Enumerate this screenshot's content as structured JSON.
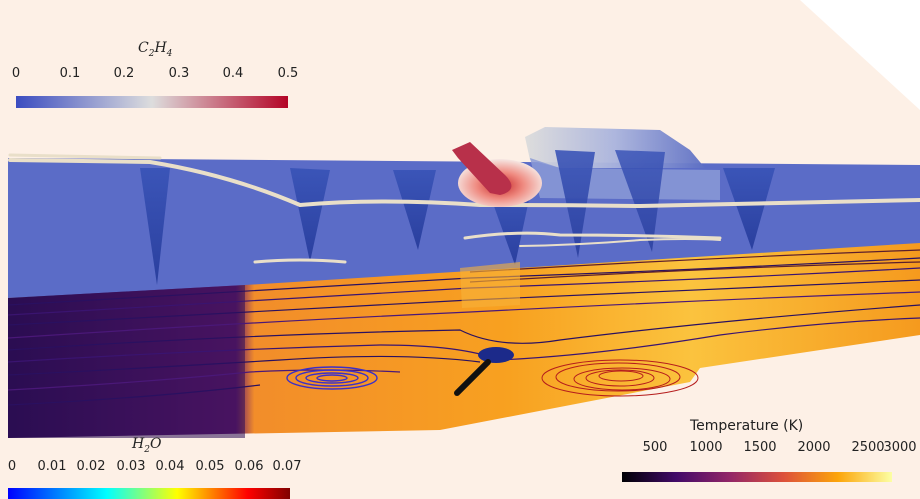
{
  "colorbars": {
    "c2h4": {
      "title_main": "C",
      "title_sub1": "2",
      "title_mid": "H",
      "title_sub2": "4",
      "ticks": [
        "0",
        "0.1",
        "0.2",
        "0.3",
        "0.4",
        "0.5"
      ],
      "colors": [
        "#3b4cc0",
        "#dddddd",
        "#b40426"
      ]
    },
    "h2o": {
      "title_main": "H",
      "title_sub1": "2",
      "title_mid": "O",
      "ticks": [
        "0",
        "0.01",
        "0.02",
        "0.03",
        "0.04",
        "0.05",
        "0.06",
        "0.07"
      ],
      "colors": [
        "#0000ff",
        "#00ffff",
        "#ffff00",
        "#ff0000",
        "#800000"
      ]
    },
    "temperature": {
      "title": "Temperature (K)",
      "ticks": [
        "500",
        "1000",
        "1500",
        "2000",
        "2500",
        "3000"
      ],
      "colors": [
        "#000004",
        "#420a68",
        "#932667",
        "#dd513a",
        "#fca50a",
        "#fcffa4"
      ]
    }
  },
  "colors": {
    "background": "#fdf0e6",
    "blue_plane": "#5a6bc6",
    "fuel_jet": "#b40426"
  }
}
